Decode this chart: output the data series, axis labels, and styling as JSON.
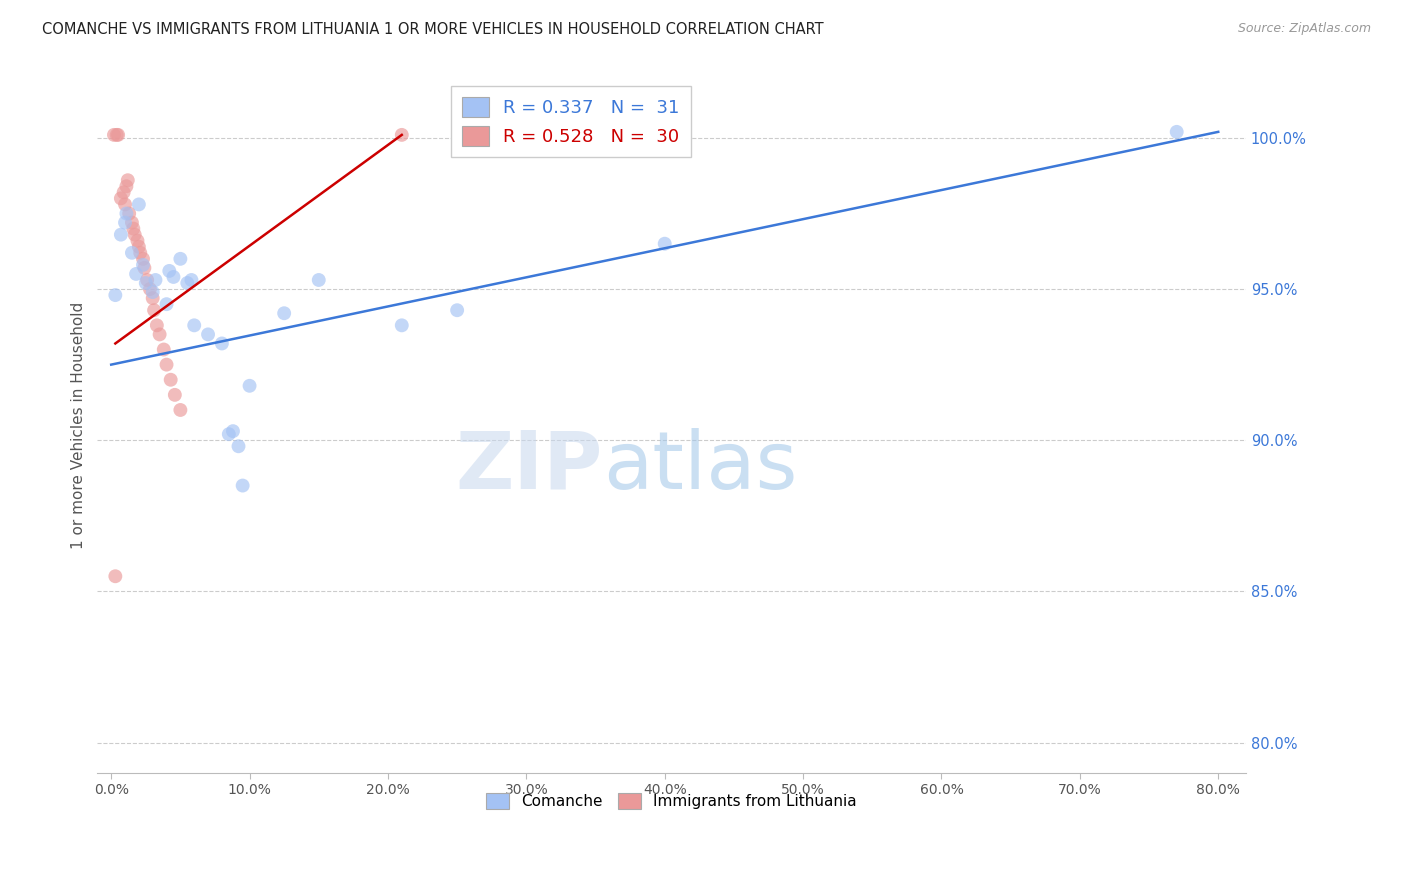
{
  "title": "COMANCHE VS IMMIGRANTS FROM LITHUANIA 1 OR MORE VEHICLES IN HOUSEHOLD CORRELATION CHART",
  "source": "Source: ZipAtlas.com",
  "ylabel": "1 or more Vehicles in Household",
  "ylabel_ticks_values": [
    80.0,
    85.0,
    90.0,
    95.0,
    100.0
  ],
  "xlim": [
    -1.0,
    82.0
  ],
  "ylim": [
    79.0,
    102.0
  ],
  "blue_color": "#a4c2f4",
  "pink_color": "#ea9999",
  "blue_line_color": "#3c78d8",
  "pink_line_color": "#cc0000",
  "blue_scatter": [
    [
      0.3,
      94.8
    ],
    [
      0.7,
      96.8
    ],
    [
      1.0,
      97.2
    ],
    [
      1.1,
      97.5
    ],
    [
      1.5,
      96.2
    ],
    [
      1.8,
      95.5
    ],
    [
      2.0,
      97.8
    ],
    [
      2.3,
      95.8
    ],
    [
      2.5,
      95.2
    ],
    [
      3.0,
      94.9
    ],
    [
      3.2,
      95.3
    ],
    [
      4.0,
      94.5
    ],
    [
      4.2,
      95.6
    ],
    [
      4.5,
      95.4
    ],
    [
      5.0,
      96.0
    ],
    [
      5.5,
      95.2
    ],
    [
      5.8,
      95.3
    ],
    [
      6.0,
      93.8
    ],
    [
      7.0,
      93.5
    ],
    [
      8.0,
      93.2
    ],
    [
      8.5,
      90.2
    ],
    [
      8.8,
      90.3
    ],
    [
      9.2,
      89.8
    ],
    [
      9.5,
      88.5
    ],
    [
      10.0,
      91.8
    ],
    [
      12.5,
      94.2
    ],
    [
      15.0,
      95.3
    ],
    [
      21.0,
      93.8
    ],
    [
      25.0,
      94.3
    ],
    [
      40.0,
      96.5
    ],
    [
      77.0,
      100.2
    ]
  ],
  "pink_scatter": [
    [
      0.2,
      100.1
    ],
    [
      0.4,
      100.1
    ],
    [
      0.5,
      100.1
    ],
    [
      0.7,
      98.0
    ],
    [
      0.9,
      98.2
    ],
    [
      1.0,
      97.8
    ],
    [
      1.1,
      98.4
    ],
    [
      1.2,
      98.6
    ],
    [
      1.3,
      97.5
    ],
    [
      1.5,
      97.2
    ],
    [
      1.6,
      97.0
    ],
    [
      1.7,
      96.8
    ],
    [
      1.9,
      96.6
    ],
    [
      2.0,
      96.4
    ],
    [
      2.1,
      96.2
    ],
    [
      2.3,
      96.0
    ],
    [
      2.4,
      95.7
    ],
    [
      2.6,
      95.3
    ],
    [
      2.8,
      95.0
    ],
    [
      3.0,
      94.7
    ],
    [
      3.1,
      94.3
    ],
    [
      3.3,
      93.8
    ],
    [
      3.5,
      93.5
    ],
    [
      3.8,
      93.0
    ],
    [
      4.0,
      92.5
    ],
    [
      4.3,
      92.0
    ],
    [
      4.6,
      91.5
    ],
    [
      5.0,
      91.0
    ],
    [
      0.3,
      85.5
    ],
    [
      21.0,
      100.1
    ]
  ],
  "blue_trendline_x": [
    0.0,
    80.0
  ],
  "blue_trendline_y": [
    92.5,
    100.2
  ],
  "pink_trendline_x": [
    0.3,
    21.0
  ],
  "pink_trendline_y": [
    93.2,
    100.1
  ],
  "watermark_zip": "ZIP",
  "watermark_atlas": "atlas",
  "marker_size": 100,
  "bg_color": "#ffffff"
}
